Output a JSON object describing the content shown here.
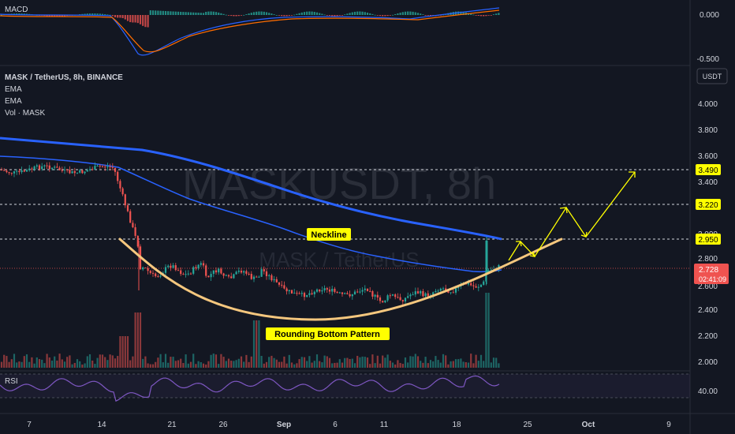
{
  "macd": {
    "label": "MACD",
    "axis": [
      "0.000",
      "-0.500"
    ]
  },
  "legend": {
    "symbol": "MASK / TetherUS, 8h, BINANCE",
    "ema1": "EMA",
    "ema2": "EMA",
    "vol": "Vol · MASK"
  },
  "currency": "USDT",
  "watermark": {
    "main": "MASKUSDT, 8h",
    "sub": "MASK / TetherUS"
  },
  "price_axis": [
    "4.000",
    "3.800",
    "3.600",
    "3.400",
    "3.000",
    "2.800",
    "2.600",
    "2.400",
    "2.200",
    "2.000"
  ],
  "levels": [
    "3.490",
    "3.220",
    "2.950"
  ],
  "current_price": "2.728",
  "countdown": "02:41:09",
  "annotations": {
    "neckline": "Neckline",
    "pattern": "Rounding Bottom Pattern"
  },
  "rsi": {
    "label": "RSI",
    "axis": "40.00"
  },
  "time_axis": [
    "7",
    "14",
    "21",
    "26",
    "Sep",
    "6",
    "11",
    "18",
    "25",
    "Oct",
    "9"
  ],
  "colors": {
    "up": "#26a69a",
    "down": "#ef5350",
    "ema_slow": "#2962ff",
    "ema_fast": "#2962ff",
    "arc": "#f5c77e",
    "arrows": "#ffff00",
    "label_bg": "#ffff00",
    "rsi": "#7e57c2"
  }
}
